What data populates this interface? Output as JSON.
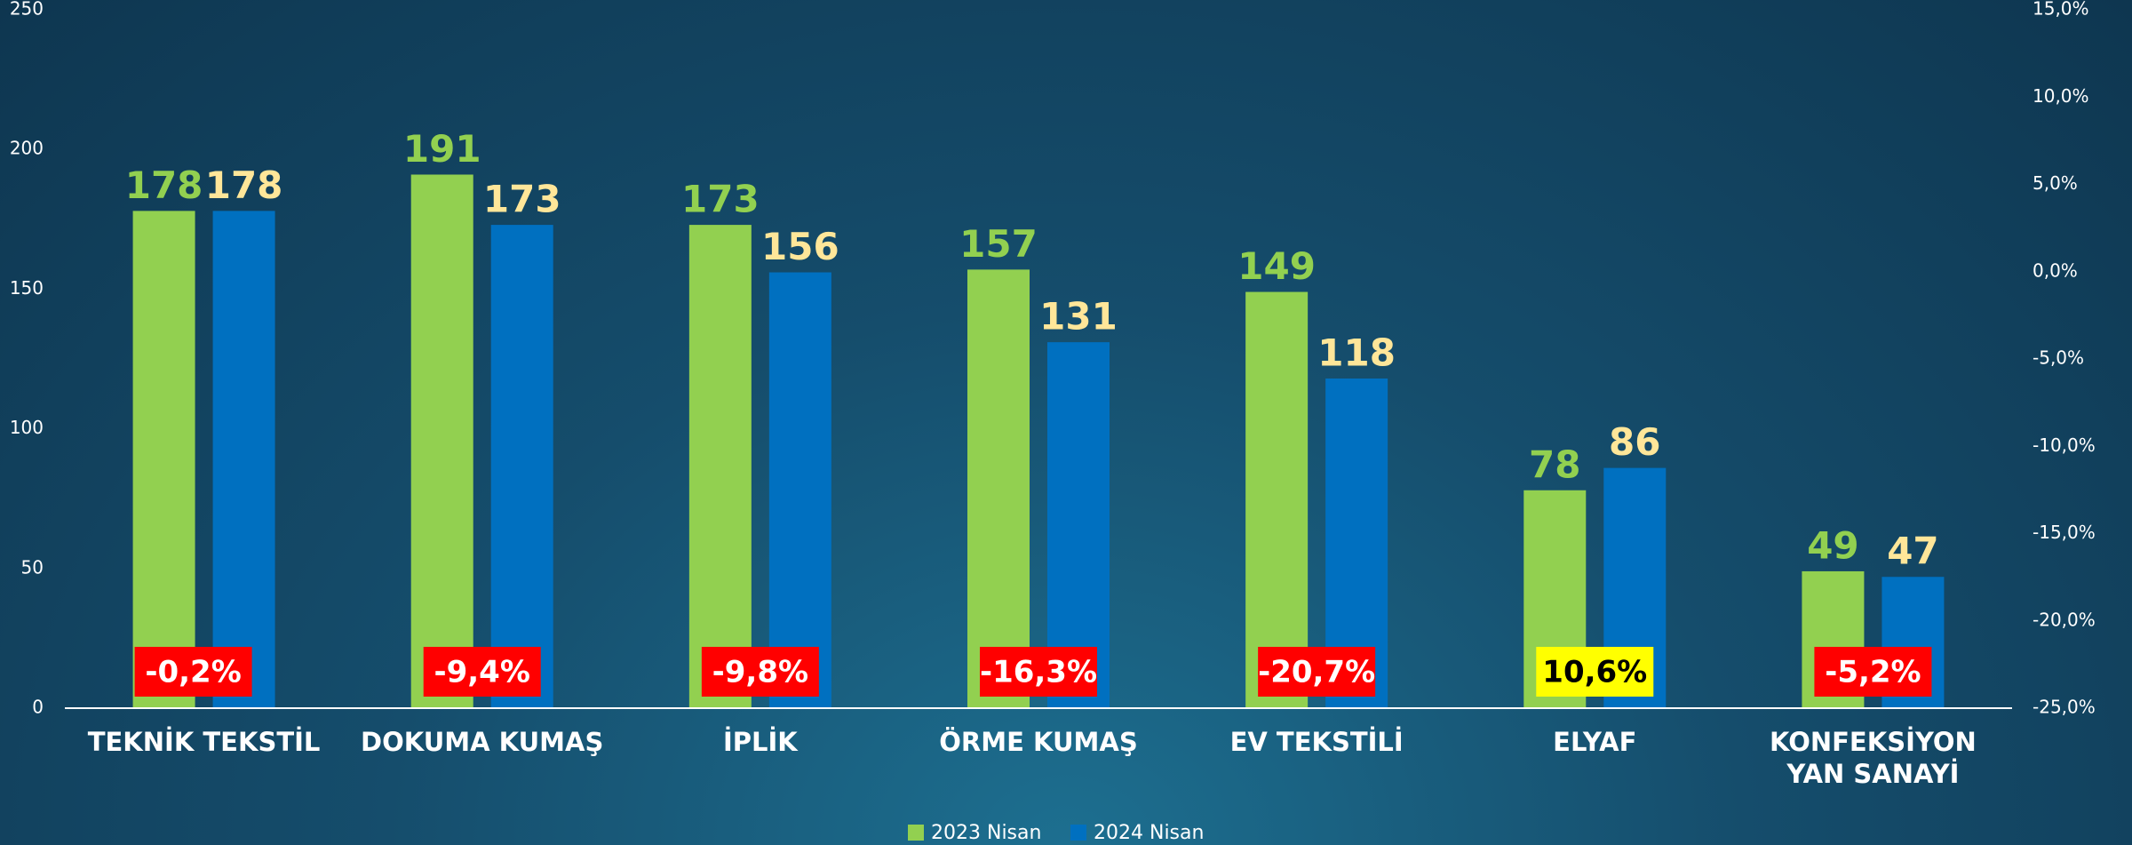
{
  "chart_data": {
    "type": "bar",
    "categories": [
      "TEKNİK TEKSTİL",
      "DOKUMA KUMAŞ",
      "İPLİK",
      "ÖRME KUMAŞ",
      "EV TEKSTİLİ",
      "ELYAF",
      "KONFEKSİYON YAN SANAYİ"
    ],
    "series": [
      {
        "name": "2023 Nisan",
        "color": "#92d050",
        "label_color": "#92d050",
        "values": [
          178,
          191,
          173,
          157,
          149,
          78,
          49
        ]
      },
      {
        "name": "2024 Nisan",
        "color": "#0070c0",
        "label_color": "#ffe699",
        "values": [
          178,
          173,
          156,
          131,
          118,
          86,
          47
        ]
      }
    ],
    "change": {
      "axis": "y2",
      "values": [
        -0.2,
        -9.4,
        -9.8,
        -16.3,
        -20.7,
        10.6,
        -5.2
      ],
      "value_labels": [
        "-0,2%",
        "-9,4%",
        "-9,8%",
        "-16,3%",
        "-20,7%",
        "10,6%",
        "-5,2%"
      ],
      "colors": [
        "#ff0000",
        "#ff0000",
        "#ff0000",
        "#ff0000",
        "#ff0000",
        "#ffff00",
        "#ff0000"
      ],
      "text_colors": [
        "#ffffff",
        "#ffffff",
        "#ffffff",
        "#ffffff",
        "#ffffff",
        "#000000",
        "#ffffff"
      ]
    },
    "ylim": [
      0,
      250
    ],
    "yticks": [
      0,
      50,
      100,
      150,
      200,
      250
    ],
    "y2lim": [
      -25,
      15
    ],
    "y2ticks": [
      {
        "value": -25,
        "label": "-25,0%"
      },
      {
        "value": -20,
        "label": "-20,0%"
      },
      {
        "value": -15,
        "label": "-15,0%"
      },
      {
        "value": -10,
        "label": "-10,0%"
      },
      {
        "value": -5,
        "label": "-5,0%"
      },
      {
        "value": 0,
        "label": "0,0%"
      },
      {
        "value": 5,
        "label": "5,0%"
      },
      {
        "value": 10,
        "label": "10,0%"
      },
      {
        "value": 15,
        "label": "15,0%"
      }
    ],
    "grid": false,
    "legend": "bottom"
  }
}
